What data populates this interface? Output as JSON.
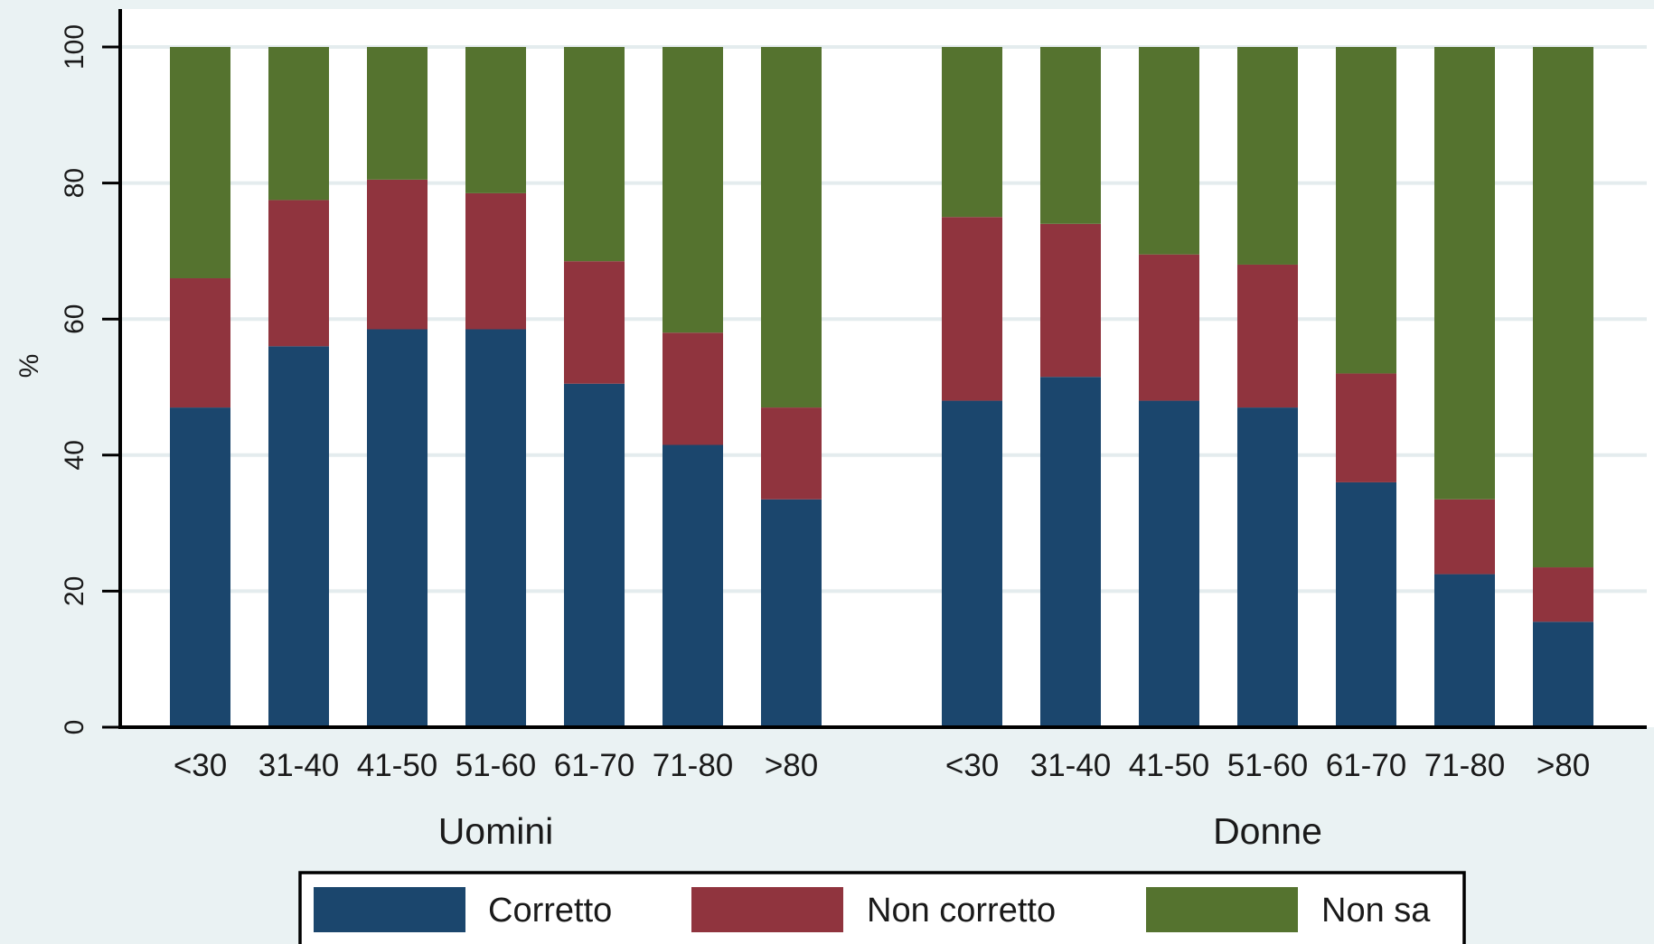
{
  "chart_data": {
    "type": "bar",
    "stacked": true,
    "title": "",
    "ylabel": "%",
    "ylim": [
      0,
      100
    ],
    "yticks": [
      0,
      20,
      40,
      60,
      80,
      100
    ],
    "grid": true,
    "legend_position": "bottom",
    "categories": [
      "<30",
      "31-40",
      "41-50",
      "51-60",
      "61-70",
      "71-80",
      ">80"
    ],
    "groups": [
      "Uomini",
      "Donne"
    ],
    "series": [
      {
        "name": "Corretto",
        "color": "#1b466d",
        "values": {
          "Uomini": [
            47,
            56,
            58.5,
            58.5,
            50.5,
            41.5,
            33.5
          ],
          "Donne": [
            48,
            51.5,
            48,
            47,
            36,
            22.5,
            15.5
          ]
        }
      },
      {
        "name": "Non corretto",
        "color": "#90343e",
        "values": {
          "Uomini": [
            19,
            21.5,
            22,
            20,
            18,
            16.5,
            13.5
          ],
          "Donne": [
            27,
            22.5,
            21.5,
            21,
            16,
            11,
            8
          ]
        }
      },
      {
        "name": "Non sa",
        "color": "#55732f",
        "values": {
          "Uomini": [
            34,
            22.5,
            19.5,
            21.5,
            31.5,
            42,
            53
          ],
          "Donne": [
            25,
            26,
            30.5,
            32,
            48,
            66.5,
            76.5
          ]
        }
      }
    ]
  },
  "colors": {
    "background": "#eaf2f3",
    "plot_background": "#ffffff",
    "grid": "#e4ecee",
    "axis": "#000000"
  }
}
